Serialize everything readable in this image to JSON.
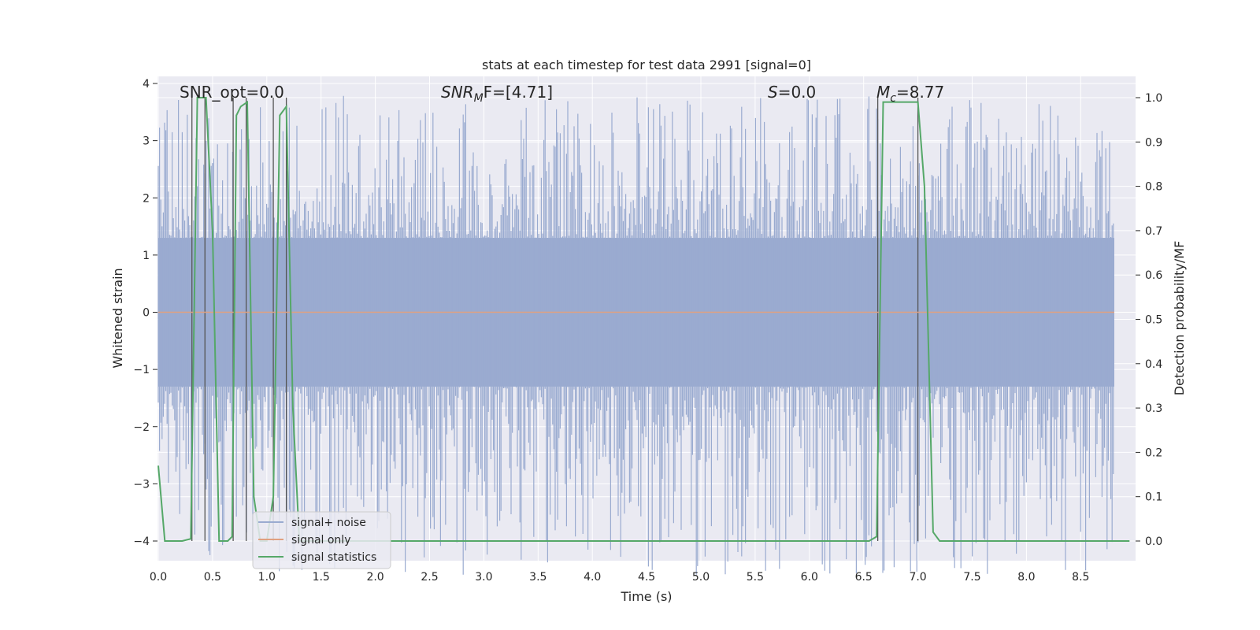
{
  "chart_data": {
    "type": "line",
    "title": "stats at each timestep for test data 2991 [signal=0]",
    "xlabel": "Time (s)",
    "ylabel_left": "Whitened strain",
    "ylabel_right": "Detection probability/MF",
    "xlim": [
      0.0,
      9.0
    ],
    "ylim_left": [
      -4.4,
      4.1
    ],
    "ylim_right": [
      -0.048,
      1.03
    ],
    "xticks": [
      "0.0",
      "0.5",
      "1.0",
      "1.5",
      "2.0",
      "2.5",
      "3.0",
      "3.5",
      "4.0",
      "4.5",
      "5.0",
      "5.5",
      "6.0",
      "6.5",
      "7.0",
      "7.5",
      "8.0",
      "8.5"
    ],
    "yticks_left": [
      "−4",
      "−3",
      "−2",
      "−1",
      "0",
      "1",
      "2",
      "3",
      "4"
    ],
    "yticks_right": [
      "0.0",
      "0.1",
      "0.2",
      "0.3",
      "0.4",
      "0.5",
      "0.6",
      "0.7",
      "0.8",
      "0.9",
      "1.0"
    ],
    "grid": true,
    "legend_position": "lower-left",
    "annotations": {
      "snr_opt": "SNR_opt=0.0",
      "snr_mf_base": "SNR",
      "snr_mf_sub": "M",
      "snr_mf_rest": "F=[4.71]",
      "s_italic": "S",
      "s_rest": "=0.0",
      "mc_base": "M",
      "mc_sub": "c",
      "mc_rest": "=8.77"
    },
    "series": [
      {
        "name": "signal+ noise",
        "color": "#9aabd0",
        "axis": "left",
        "envelope_inner": 1.3,
        "envelope_outer_max": 3.8,
        "envelope_outer_min": -4.0
      },
      {
        "name": "signal only",
        "color": "#e0a080",
        "axis": "left",
        "x": [
          0.0,
          9.0
        ],
        "y": [
          0.0,
          0.0
        ]
      },
      {
        "name": "signal statistics",
        "color": "#55a868",
        "axis": "right",
        "x": [
          0.0,
          0.06,
          0.12,
          0.22,
          0.3,
          0.36,
          0.4,
          0.44,
          0.5,
          0.56,
          0.6,
          0.64,
          0.68,
          0.72,
          0.76,
          0.82,
          0.88,
          0.94,
          1.0,
          1.06,
          1.12,
          1.18,
          1.24,
          1.3,
          1.34,
          1.4,
          1.6,
          2.0,
          3.0,
          4.0,
          5.0,
          6.0,
          6.55,
          6.62,
          6.68,
          7.0,
          7.06,
          7.14,
          7.2,
          8.0,
          8.95
        ],
        "y": [
          0.17,
          0.0,
          0.0,
          0.0,
          0.005,
          1.0,
          1.0,
          1.0,
          0.7,
          0.0,
          0.0,
          0.0,
          0.01,
          0.96,
          0.98,
          0.99,
          0.1,
          0.0,
          0.0,
          0.1,
          0.96,
          0.98,
          0.3,
          0.0,
          0.0,
          0.0,
          0.0,
          0.0,
          0.0,
          0.0,
          0.0,
          0.0,
          0.0,
          0.01,
          0.99,
          0.99,
          0.8,
          0.02,
          0.0,
          0.0,
          0.0
        ]
      }
    ],
    "vertical_lines_x": [
      0.31,
      0.43,
      0.69,
      0.81,
      1.06,
      1.18,
      6.63,
      7.0
    ]
  }
}
